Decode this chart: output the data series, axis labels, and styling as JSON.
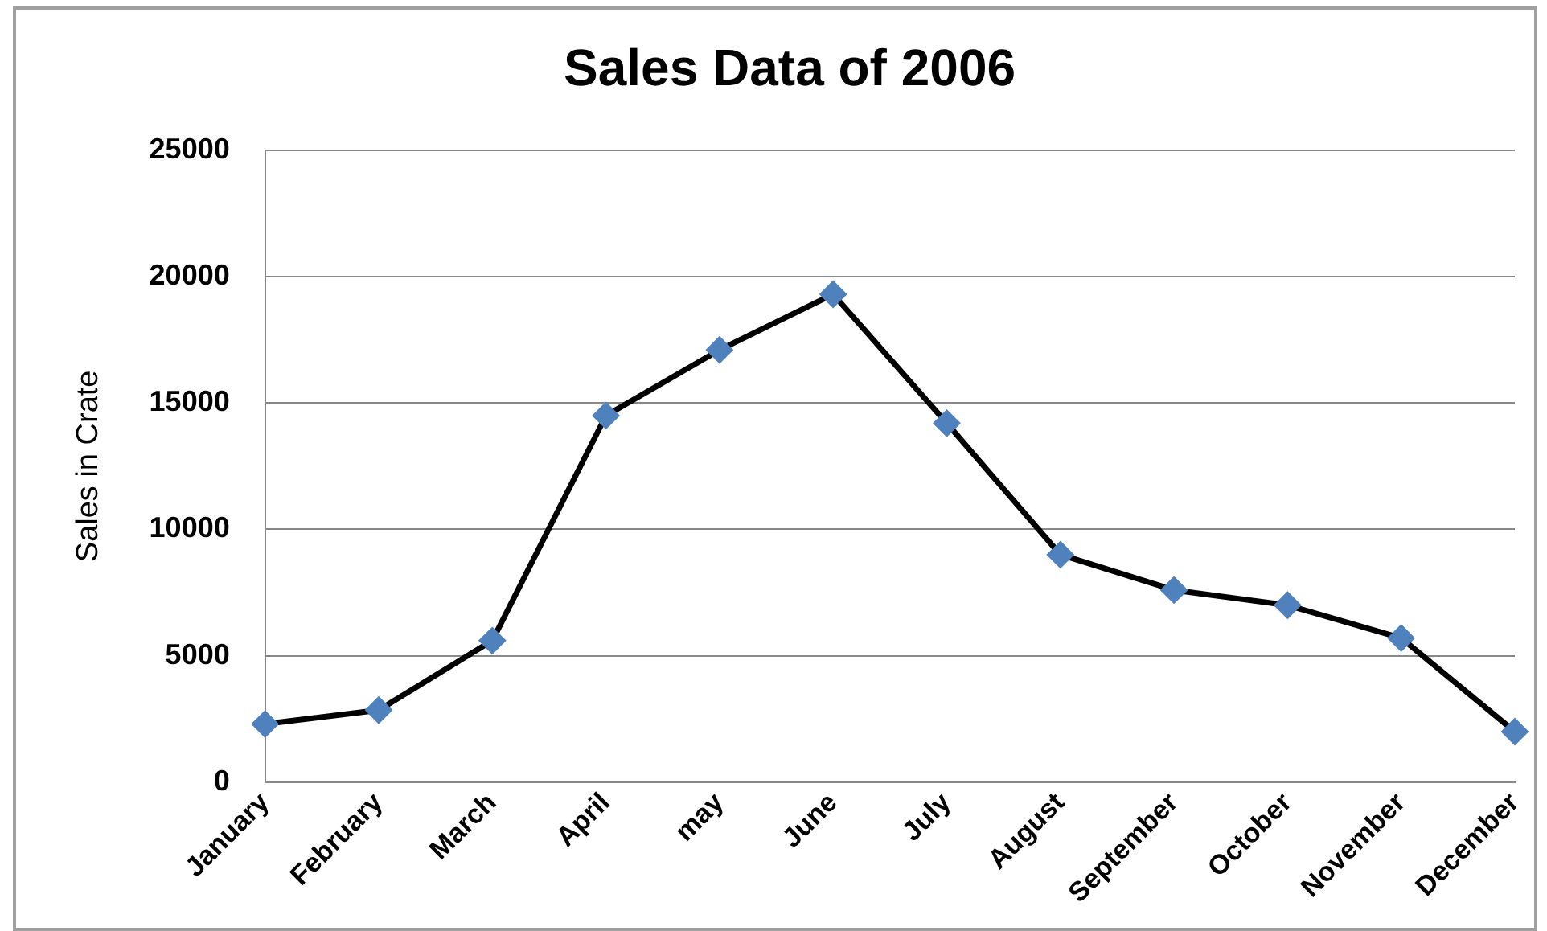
{
  "chart_data": {
    "type": "line",
    "title": "Sales Data of 2006",
    "ylabel": "Sales in Crate",
    "categories": [
      "January",
      "February",
      "March",
      "April",
      "may",
      "June",
      "July",
      "August",
      "September",
      "October",
      "November",
      "December"
    ],
    "series": [
      {
        "color": "#000000",
        "values": [
          2300,
          2850,
          5600,
          14500,
          17100,
          19300,
          14200,
          9000,
          7600,
          7000,
          5700,
          2000
        ]
      }
    ],
    "ylim": [
      0,
      25000
    ],
    "yticks": [
      0,
      5000,
      10000,
      15000,
      20000,
      25000
    ],
    "grid": "y",
    "legend": false,
    "marker": "diamond",
    "line_style": "solid"
  }
}
